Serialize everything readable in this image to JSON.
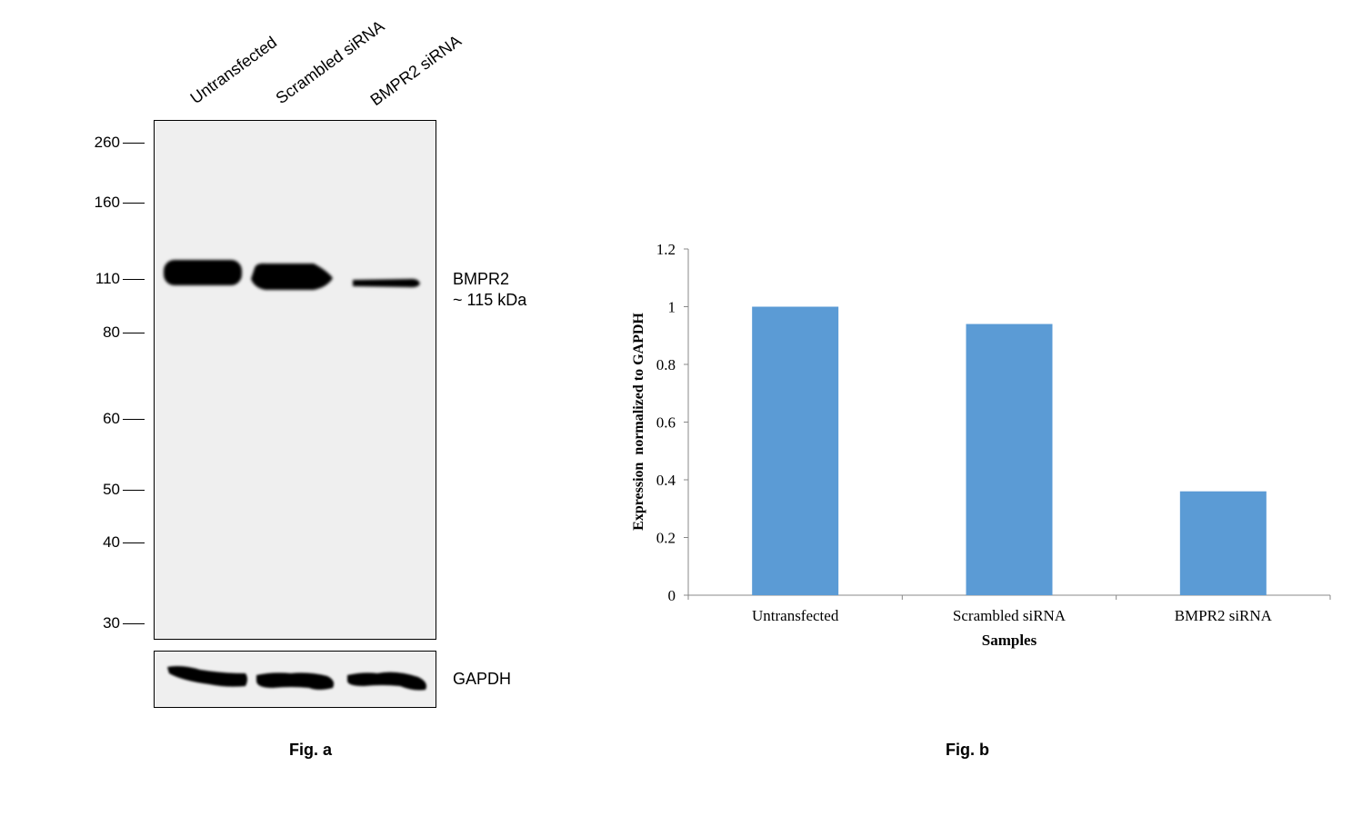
{
  "figure_a": {
    "caption": "Fig. a",
    "lanes": [
      "Untransfected",
      "Scrambled siRNA",
      "BMPR2 siRNA"
    ],
    "markers": [
      "260",
      "160",
      "110",
      "80",
      "60",
      "50",
      "40",
      "30"
    ],
    "band_label": "BMPR2",
    "band_size": "~ 115 kDa",
    "loading_control": "GAPDH"
  },
  "figure_b": {
    "caption": "Fig. b"
  },
  "chart_data": {
    "type": "bar",
    "categories": [
      "Untransfected",
      "Scrambled siRNA",
      "BMPR2 siRNA"
    ],
    "values": [
      1.0,
      0.94,
      0.36
    ],
    "xlabel": "Samples",
    "ylabel": "Expression  normalized to GAPDH",
    "ylim": [
      0,
      1.2
    ],
    "yticks": [
      "0",
      "0.2",
      "0.4",
      "0.6",
      "0.8",
      "1",
      "1.2"
    ],
    "bar_color": "#5b9bd5",
    "grid": false,
    "legend": "none"
  }
}
